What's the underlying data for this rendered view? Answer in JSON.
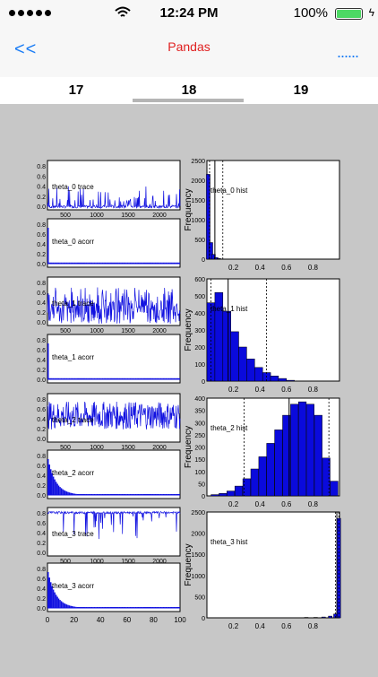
{
  "status_bar": {
    "time": "12:24 PM",
    "battery": "100%"
  },
  "nav": {
    "back_label": "<<",
    "title": "Pandas",
    "more_label": "......"
  },
  "tabs": [
    {
      "label": "17"
    },
    {
      "label": "18"
    },
    {
      "label": "19"
    }
  ],
  "selected_tab": "18",
  "plots": {
    "left_y_ticks": [
      "0.8",
      "0.6",
      "0.4",
      "0.2",
      "0.0"
    ],
    "trace_x_ticks": [
      "500",
      "1000",
      "1500",
      "2000"
    ],
    "acorr_x_ticks": [
      "0",
      "20",
      "40",
      "60",
      "80",
      "100"
    ],
    "hist_x_ticks": [
      "0.2",
      "0.4",
      "0.6",
      "0.8"
    ],
    "hist_ylabel": "Frequency",
    "rows": [
      {
        "trace_label": "theta_0 trace",
        "acorr_label": "theta_0 acorr",
        "hist_label": "theta_0 hist",
        "hist_y_ticks": [
          "2500",
          "2000",
          "1500",
          "1000",
          "500",
          "0"
        ]
      },
      {
        "trace_label": "theta_1 trace",
        "acorr_label": "theta_1 acorr",
        "hist_label": "theta_1 hist",
        "hist_y_ticks": [
          "600",
          "500",
          "400",
          "300",
          "200",
          "100",
          "0"
        ]
      },
      {
        "trace_label": "theta_2 trace",
        "acorr_label": "theta_2 acorr",
        "hist_label": "theta_2 hist",
        "hist_y_ticks": [
          "400",
          "350",
          "300",
          "250",
          "200",
          "150",
          "100",
          "50",
          "0"
        ]
      },
      {
        "trace_label": "theta_3 trace",
        "acorr_label": "theta_3 acorr",
        "hist_label": "theta_3 hist",
        "hist_y_ticks": [
          "2500",
          "2000",
          "1500",
          "1000",
          "500",
          "0"
        ]
      }
    ]
  },
  "chart_data": [
    {
      "type": "bar",
      "title": "theta_0 hist",
      "ylabel": "Frequency",
      "x": [
        0.01,
        0.03,
        0.05,
        0.07,
        0.09,
        0.11
      ],
      "values": [
        2150,
        420,
        120,
        40,
        15,
        5
      ],
      "ylim": [
        0,
        2500
      ]
    },
    {
      "type": "bar",
      "title": "theta_1 hist",
      "ylabel": "Frequency",
      "x": [
        0.03,
        0.09,
        0.15,
        0.21,
        0.27,
        0.33,
        0.39,
        0.45,
        0.51,
        0.57,
        0.63
      ],
      "values": [
        460,
        520,
        410,
        290,
        200,
        130,
        80,
        50,
        30,
        15,
        5
      ],
      "ylim": [
        0,
        600
      ]
    },
    {
      "type": "bar",
      "title": "theta_2 hist",
      "ylabel": "Frequency",
      "x": [
        0.06,
        0.12,
        0.18,
        0.24,
        0.3,
        0.36,
        0.42,
        0.48,
        0.54,
        0.6,
        0.66,
        0.72,
        0.78,
        0.84,
        0.9,
        0.96
      ],
      "values": [
        5,
        10,
        20,
        40,
        70,
        110,
        160,
        215,
        270,
        330,
        375,
        385,
        375,
        330,
        155,
        60
      ],
      "ylim": [
        0,
        400
      ]
    },
    {
      "type": "bar",
      "title": "theta_3 hist",
      "ylabel": "Frequency",
      "x": [
        0.55,
        0.65,
        0.75,
        0.82,
        0.88,
        0.93,
        0.97,
        0.995
      ],
      "values": [
        5,
        5,
        10,
        10,
        20,
        40,
        90,
        2350
      ],
      "ylim": [
        0,
        2500
      ]
    }
  ]
}
